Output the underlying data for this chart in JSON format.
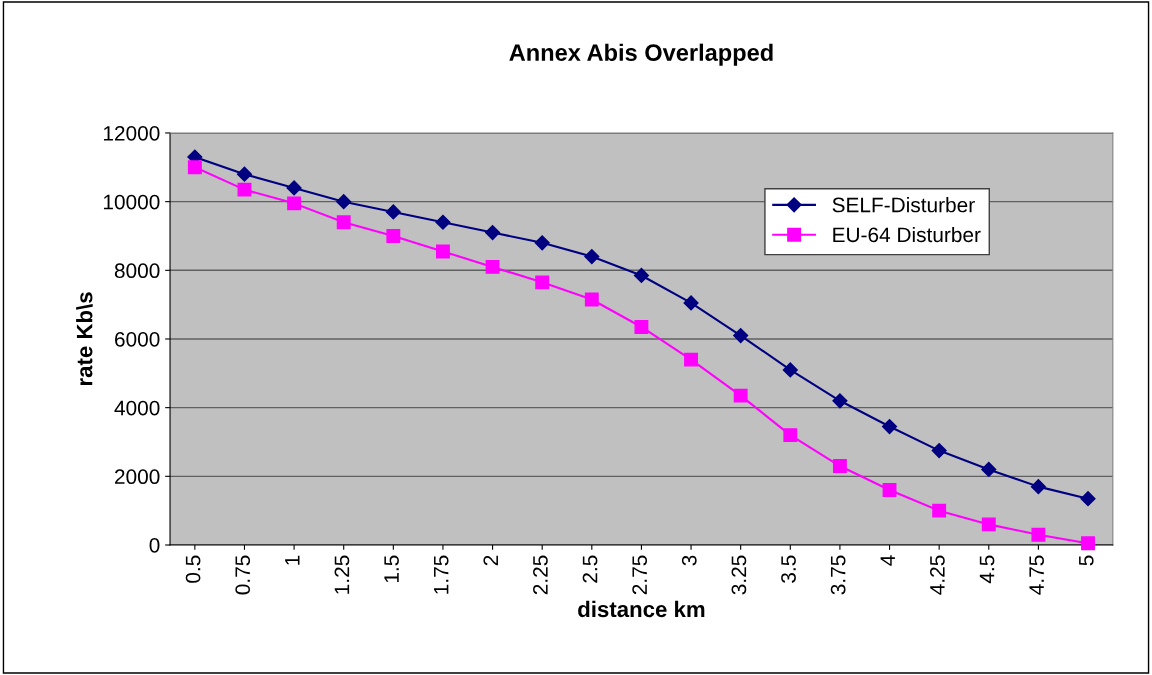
{
  "chart_data": {
    "type": "line",
    "title": "Annex Abis Overlapped",
    "xlabel": "distance km",
    "ylabel": "rate Kb\\s",
    "categories": [
      "0.5",
      "0.75",
      "1",
      "1.25",
      "1.5",
      "1.75",
      "2",
      "2.25",
      "2.5",
      "2.75",
      "3",
      "3.25",
      "3.5",
      "3.75",
      "4",
      "4.25",
      "4.5",
      "4.75",
      "5"
    ],
    "series": [
      {
        "name": "SELF-Disturber",
        "color": "#000080",
        "marker": "diamond",
        "values": [
          11300,
          10800,
          10400,
          10000,
          9700,
          9400,
          9100,
          8800,
          8400,
          7850,
          7050,
          6100,
          5100,
          4200,
          3450,
          2750,
          2200,
          1700,
          1350
        ]
      },
      {
        "name": "EU-64 Disturber",
        "color": "#ff00ff",
        "marker": "square",
        "values": [
          11000,
          10350,
          9950,
          9400,
          9000,
          8550,
          8100,
          7650,
          7150,
          6350,
          5400,
          4350,
          3200,
          2300,
          1600,
          1000,
          600,
          300,
          50
        ]
      }
    ],
    "ylim": [
      0,
      12000
    ],
    "yticks": [
      0,
      2000,
      4000,
      6000,
      8000,
      10000,
      12000
    ],
    "grid": "y",
    "legend": "top right",
    "line_style": "solid"
  }
}
